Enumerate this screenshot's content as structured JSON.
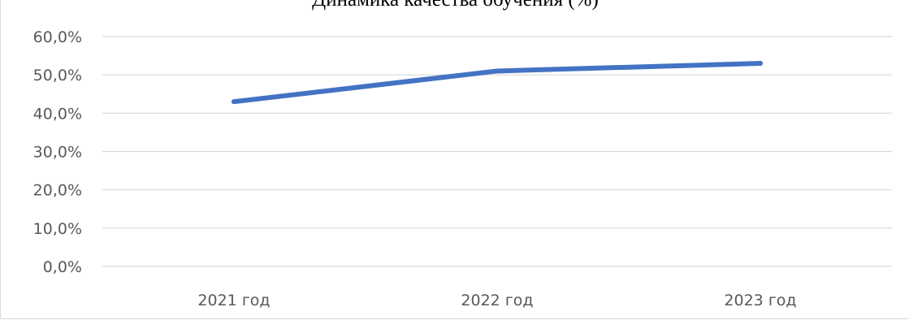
{
  "chart_data": {
    "type": "line",
    "title": "Динамика качества обучения (%)",
    "xlabel": "",
    "ylabel": "",
    "categories": [
      "2021 год",
      "2022 год",
      "2023 год"
    ],
    "series": [
      {
        "values": [
          43.0,
          51.0,
          53.0
        ],
        "color": "#4472C4"
      }
    ],
    "ylim": [
      0,
      60
    ],
    "yticks": [
      "0,0%",
      "10,0%",
      "20,0%",
      "30,0%",
      "40,0%",
      "50,0%",
      "60,0%"
    ],
    "grid": true,
    "legend": "none"
  }
}
